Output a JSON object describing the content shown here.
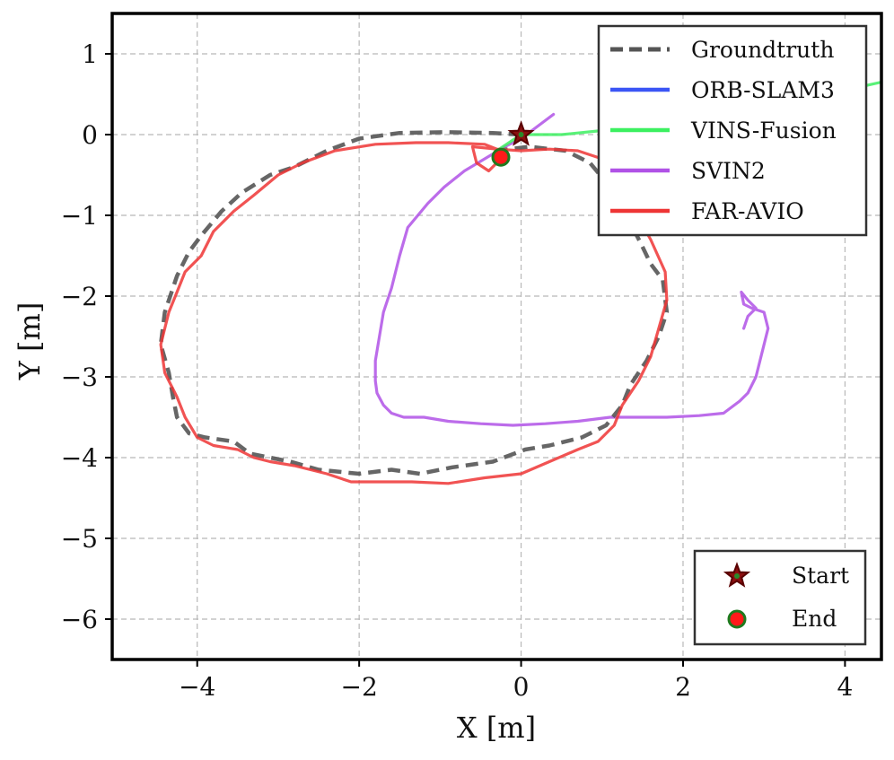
{
  "chart_data": {
    "type": "line",
    "xlabel": "X [m]",
    "ylabel": "Y [m]",
    "xlim": [
      -5.05,
      4.45
    ],
    "ylim": [
      -6.5,
      1.5
    ],
    "xticks": [
      -4,
      -2,
      0,
      2,
      4
    ],
    "xtick_labels": [
      "−4",
      "−2",
      "0",
      "2",
      "4"
    ],
    "yticks": [
      1,
      0,
      -1,
      -2,
      -3,
      -4,
      -5,
      -6
    ],
    "ytick_labels": [
      "1",
      "0",
      "−1",
      "−2",
      "−3",
      "−4",
      "−5",
      "−6"
    ],
    "grid": true,
    "legend_position": "top-right",
    "series": [
      {
        "name": "Groundtruth",
        "color": "#555555",
        "style": "dashed",
        "x": [
          0,
          -0.35,
          -0.9,
          -1.5,
          -2.0,
          -2.4,
          -2.8,
          -3.1,
          -3.45,
          -3.7,
          -3.95,
          -4.1,
          -4.25,
          -4.4,
          -4.45,
          -4.35,
          -4.3,
          -4.25,
          -4.1,
          -3.9,
          -3.55,
          -3.35,
          -3.1,
          -2.85,
          -2.5,
          -2.0,
          -1.6,
          -1.25,
          -0.85,
          -0.35,
          0.05,
          0.35,
          0.75,
          1.05,
          1.25,
          1.35,
          1.55,
          1.7,
          1.8,
          1.75,
          1.6,
          1.48,
          1.3,
          1.1,
          0.85,
          0.55,
          0.1,
          -0.3
        ],
        "y": [
          0,
          0.02,
          0.03,
          0.02,
          -0.05,
          -0.2,
          -0.4,
          -0.5,
          -0.72,
          -0.95,
          -1.25,
          -1.45,
          -1.75,
          -2.2,
          -2.6,
          -2.95,
          -3.25,
          -3.5,
          -3.7,
          -3.75,
          -3.8,
          -3.95,
          -4.0,
          -4.05,
          -4.15,
          -4.2,
          -4.15,
          -4.2,
          -4.12,
          -4.05,
          -3.9,
          -3.85,
          -3.75,
          -3.6,
          -3.35,
          -3.1,
          -2.8,
          -2.5,
          -2.2,
          -1.8,
          -1.6,
          -1.35,
          -1.0,
          -0.65,
          -0.35,
          -0.2,
          -0.15,
          -0.2
        ]
      },
      {
        "name": "ORB-SLAM3",
        "color": "#3b55f5",
        "style": "solid",
        "x": [],
        "y": []
      },
      {
        "name": "VINS-Fusion",
        "color": "#3cf060",
        "style": "solid",
        "x": [
          -0.3,
          0.0,
          0.5,
          1.0,
          1.5,
          2.0,
          2.5,
          3.0,
          3.5,
          4.0,
          4.45
        ],
        "y": [
          -0.2,
          0.0,
          0.0,
          0.05,
          0.1,
          0.18,
          0.25,
          0.35,
          0.45,
          0.55,
          0.65
        ]
      },
      {
        "name": "SVIN2",
        "color": "#b052e6",
        "style": "solid",
        "x": [
          0.4,
          0.2,
          0.0,
          -0.2,
          -0.45,
          -0.7,
          -0.95,
          -1.15,
          -1.4,
          -1.5,
          -1.6,
          -1.7,
          -1.75,
          -1.8,
          -1.8,
          -1.78,
          -1.7,
          -1.6,
          -1.45,
          -1.2,
          -0.9,
          -0.5,
          -0.1,
          0.3,
          0.7,
          1.1,
          1.5,
          1.8,
          2.2,
          2.5,
          2.7,
          2.8,
          2.85,
          2.9,
          3.05,
          3.0,
          2.85,
          2.75,
          2.72,
          2.8,
          2.9,
          2.8,
          2.75
        ],
        "y": [
          0.25,
          0.1,
          -0.05,
          -0.15,
          -0.3,
          -0.45,
          -0.65,
          -0.85,
          -1.15,
          -1.5,
          -1.9,
          -2.2,
          -2.5,
          -2.8,
          -3.05,
          -3.2,
          -3.35,
          -3.45,
          -3.5,
          -3.5,
          -3.55,
          -3.58,
          -3.6,
          -3.58,
          -3.55,
          -3.5,
          -3.5,
          -3.5,
          -3.48,
          -3.45,
          -3.3,
          -3.2,
          -3.1,
          -3.0,
          -2.4,
          -2.2,
          -2.15,
          -2.1,
          -1.95,
          -2.05,
          -2.15,
          -2.25,
          -2.4
        ]
      },
      {
        "name": "FAR-AVIO",
        "color": "#ee3535",
        "style": "solid",
        "x": [
          -0.25,
          -0.45,
          -0.9,
          -1.3,
          -1.8,
          -2.3,
          -2.7,
          -3.0,
          -3.3,
          -3.55,
          -3.8,
          -3.95,
          -4.15,
          -4.25,
          -4.35,
          -4.45,
          -4.4,
          -4.25,
          -4.15,
          -4.0,
          -3.8,
          -3.5,
          -3.3,
          -3.1,
          -2.8,
          -2.4,
          -2.1,
          -1.75,
          -1.35,
          -0.9,
          -0.45,
          0.0,
          0.35,
          0.7,
          0.95,
          1.15,
          1.25,
          1.45,
          1.6,
          1.7,
          1.8,
          1.78,
          1.6,
          1.4,
          1.2,
          1.0,
          0.7,
          0.35,
          0.0,
          -0.3,
          -0.6,
          -0.55,
          -0.4,
          -0.25
        ],
        "y": [
          -0.2,
          -0.12,
          -0.1,
          -0.1,
          -0.12,
          -0.2,
          -0.35,
          -0.5,
          -0.75,
          -0.95,
          -1.2,
          -1.5,
          -1.7,
          -1.95,
          -2.2,
          -2.6,
          -2.95,
          -3.25,
          -3.5,
          -3.75,
          -3.85,
          -3.9,
          -4.0,
          -4.05,
          -4.1,
          -4.2,
          -4.3,
          -4.3,
          -4.3,
          -4.32,
          -4.25,
          -4.2,
          -4.05,
          -3.9,
          -3.8,
          -3.6,
          -3.35,
          -3.05,
          -2.75,
          -2.4,
          -2.05,
          -1.7,
          -1.3,
          -0.95,
          -0.6,
          -0.3,
          -0.2,
          -0.18,
          -0.2,
          -0.18,
          -0.15,
          -0.35,
          -0.45,
          -0.3
        ]
      }
    ],
    "markers": [
      {
        "name": "Start",
        "x": 0.0,
        "y": 0.0,
        "shape": "star",
        "fill": "#8b1010",
        "edge": "#5a0000",
        "center": "#2a8a2a"
      },
      {
        "name": "End",
        "x": -0.25,
        "y": -0.28,
        "shape": "circle",
        "fill": "#ff1a1a",
        "edge": "#1e7a1e"
      }
    ]
  }
}
